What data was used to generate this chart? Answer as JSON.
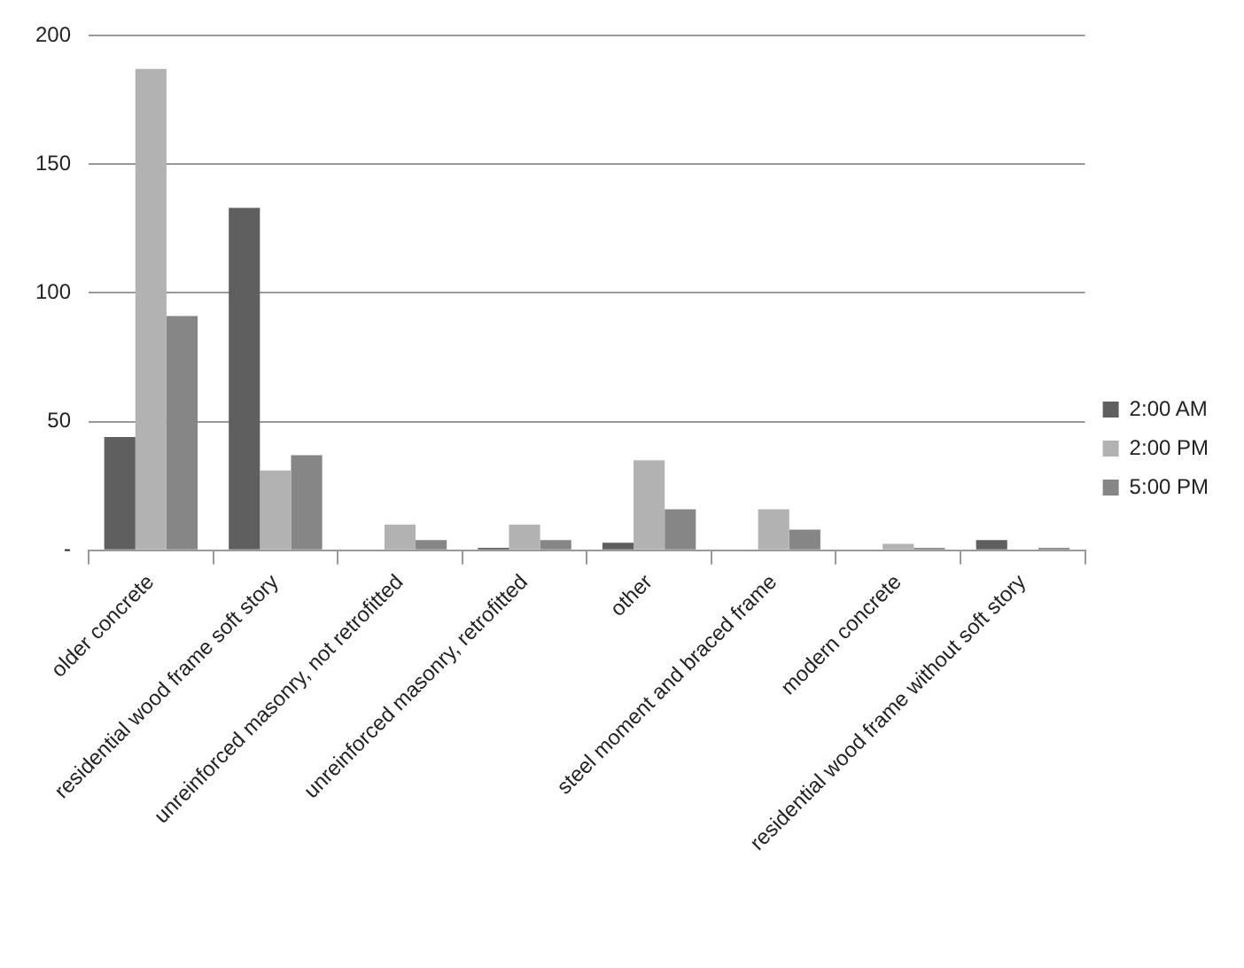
{
  "chart_data": {
    "type": "bar",
    "categories": [
      "older concrete",
      "residential wood frame soft story",
      "unreinforced masonry, not retrofitted",
      "unreinforced masonry, retrofitted",
      "other",
      "steel moment and braced frame",
      "modern concrete",
      "residential wood frame without soft story"
    ],
    "series": [
      {
        "name": "2:00 AM",
        "color": "#5f5f5f",
        "values": [
          44,
          133,
          0,
          1,
          3,
          0,
          0,
          4
        ]
      },
      {
        "name": "2:00 PM",
        "color": "#b2b2b2",
        "values": [
          187,
          31,
          10,
          10,
          35,
          16,
          2.5,
          0
        ]
      },
      {
        "name": "5:00 PM",
        "color": "#868686",
        "values": [
          91,
          37,
          4,
          4,
          16,
          8,
          1,
          1
        ]
      }
    ],
    "ylim": [
      0,
      200
    ],
    "yticks": [
      {
        "value": 0,
        "label": "-"
      },
      50,
      100,
      150,
      200
    ],
    "grid": "y",
    "legend": "right"
  }
}
